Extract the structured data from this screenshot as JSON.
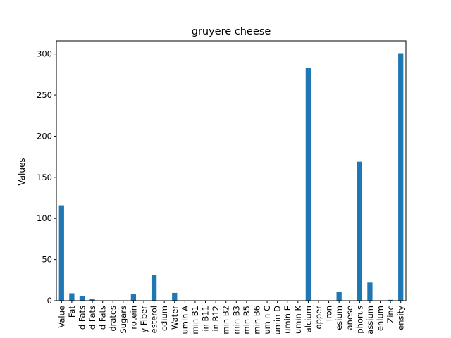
{
  "chart_data": {
    "type": "bar",
    "title": "gruyere cheese",
    "xlabel": "",
    "ylabel": "Values",
    "ylim": [
      0,
      316
    ],
    "yticks": [
      0,
      50,
      100,
      150,
      200,
      250,
      300
    ],
    "grid": false,
    "bar_color": "#1f77b4",
    "categories": [
      "Value",
      "Fat",
      "d Fats",
      "d Fats",
      "d Fats",
      "drates",
      "Sugars",
      "rotein",
      "y Fiber",
      "esterol",
      "odium",
      "Water",
      "umin A",
      "min B1",
      "in B11",
      "in B12",
      "min B2",
      "min B3",
      "min B5",
      "min B6",
      "umin C",
      "umin D",
      "umin E",
      "umin K",
      "alcium",
      "opper",
      "Iron",
      "esium",
      "anese",
      "phorus",
      "assium",
      "enium",
      "Zinc",
      "ensity"
    ],
    "values": [
      116,
      9,
      5.5,
      2.5,
      0,
      0,
      0,
      8.5,
      0,
      31,
      0,
      9.5,
      0,
      0,
      0,
      0,
      0,
      0,
      0,
      0,
      0,
      0,
      0,
      0,
      283,
      0,
      0,
      10.5,
      0,
      169,
      22,
      0,
      1,
      301
    ]
  }
}
